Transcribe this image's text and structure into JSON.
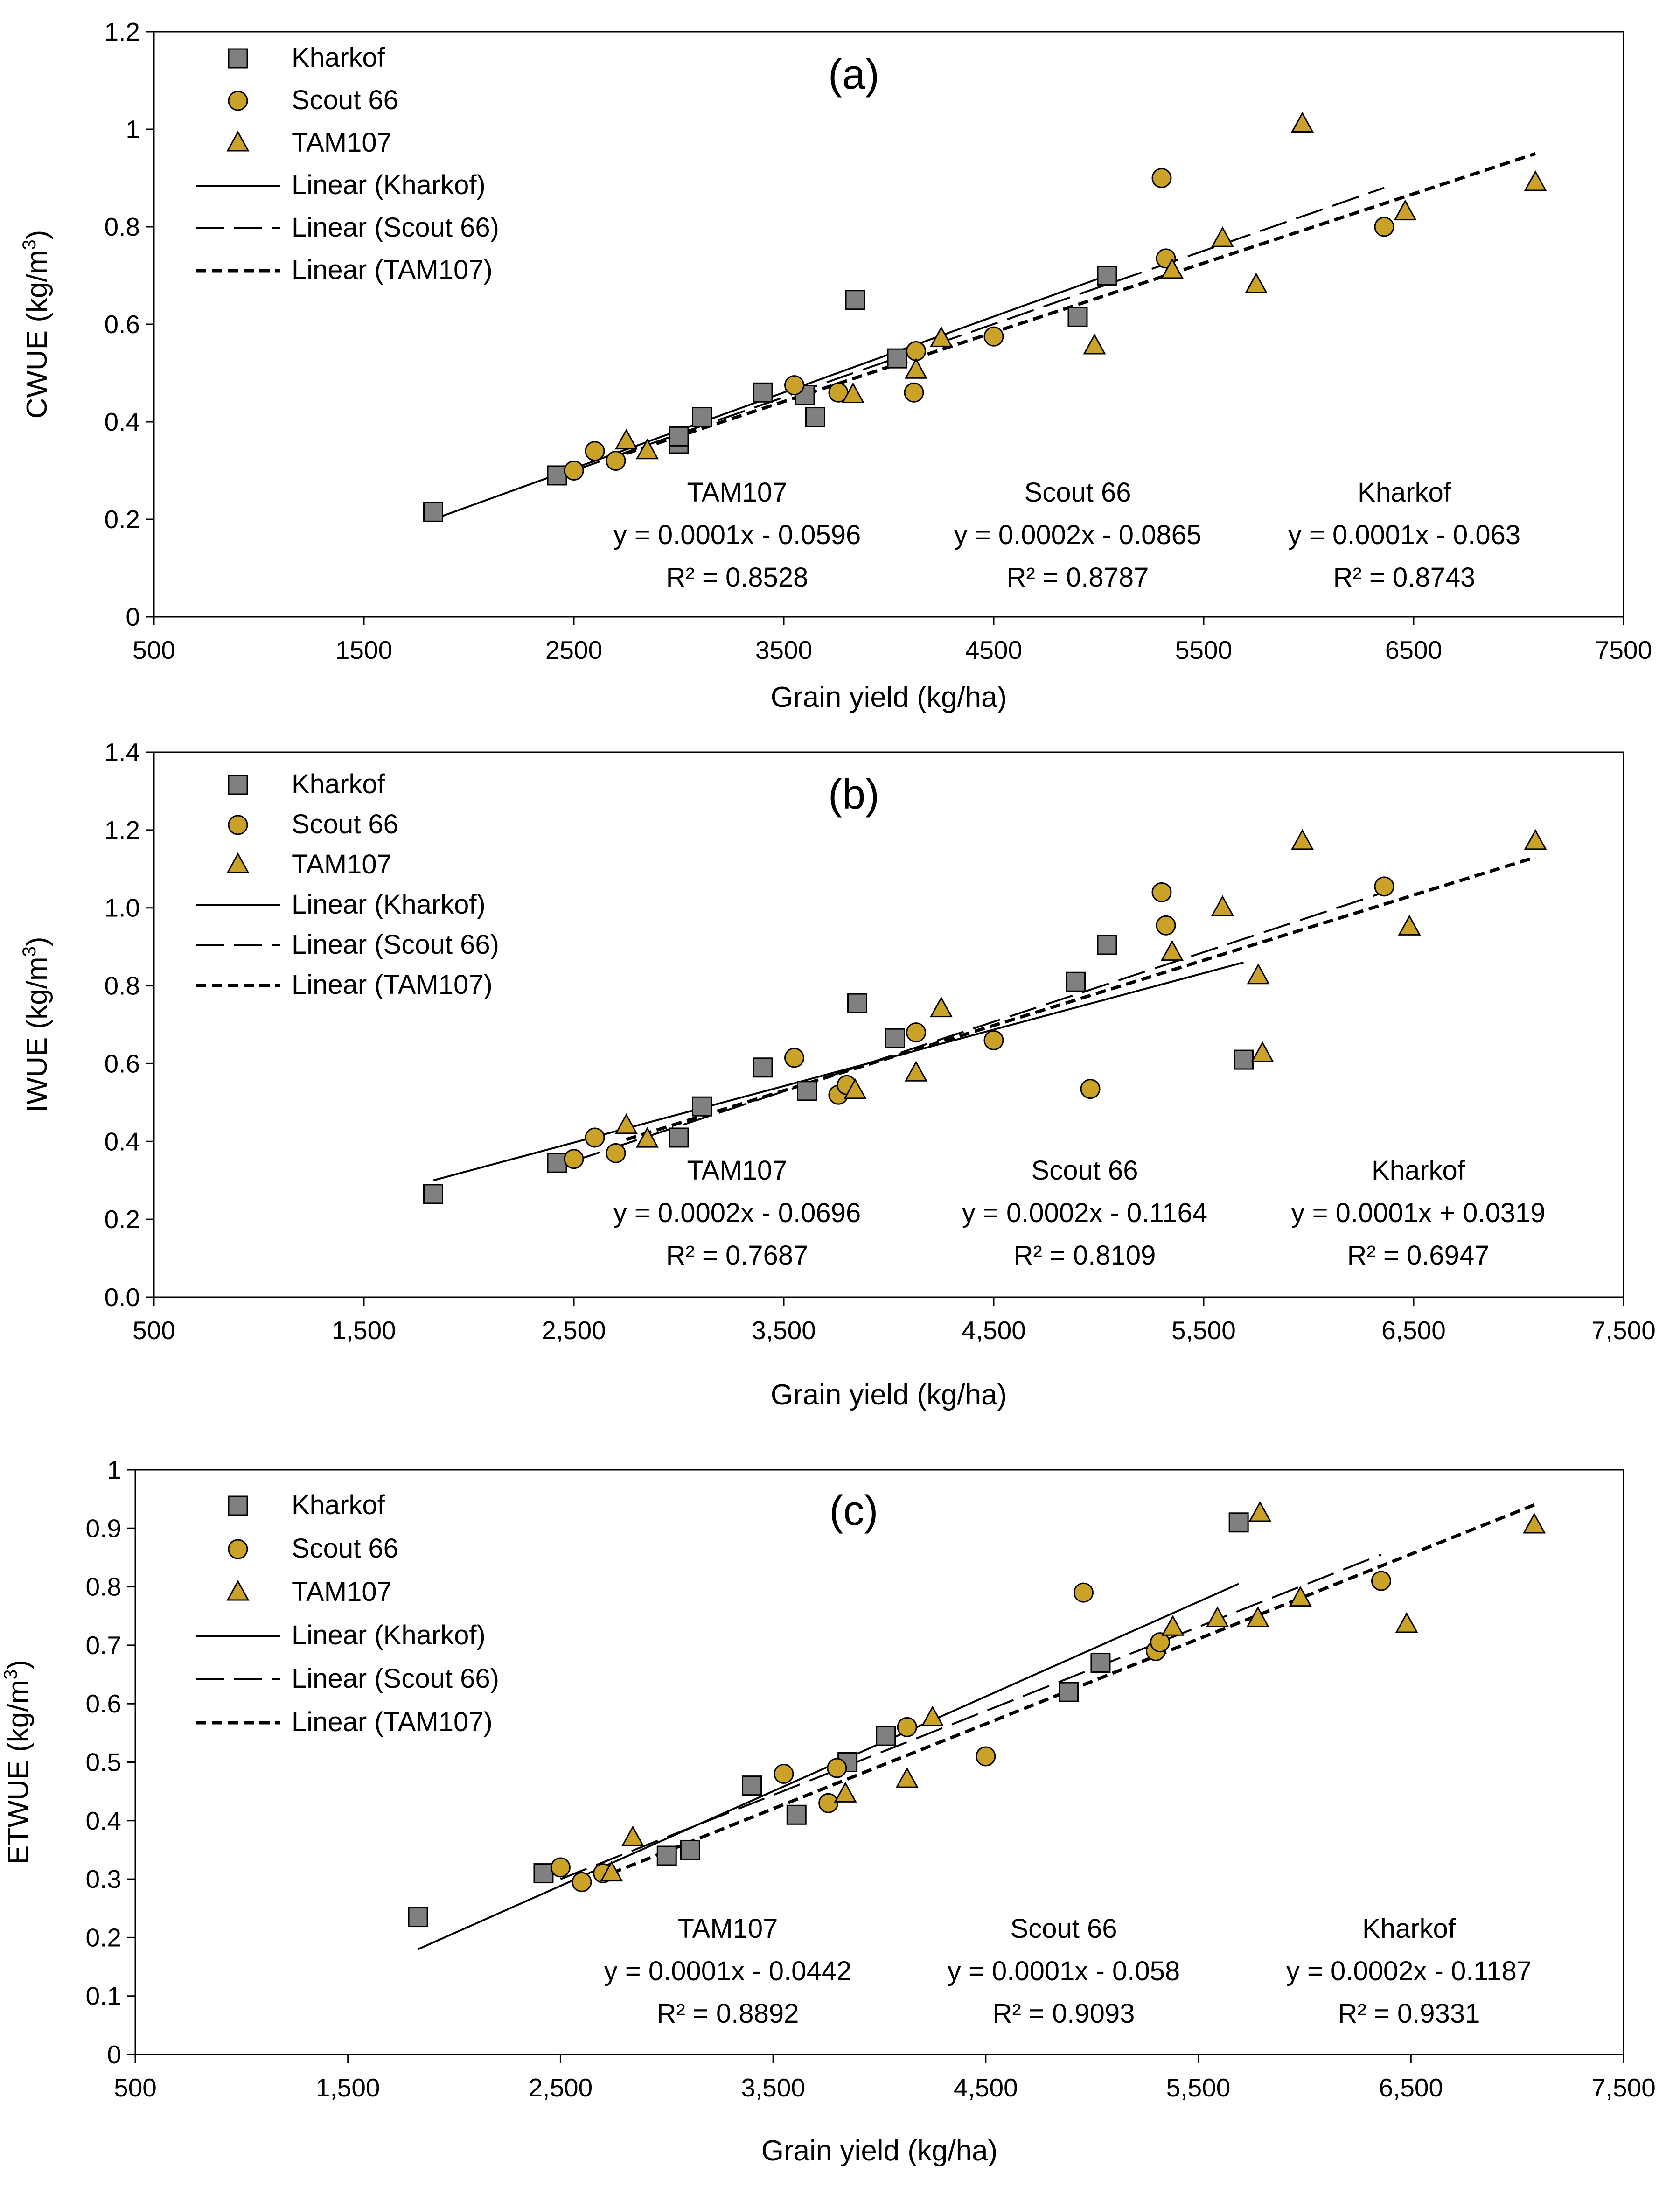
{
  "colors": {
    "kharkof": "#808080",
    "scout": "#C9A227",
    "tam": "#C9A227",
    "edge": "#000000"
  },
  "chart_data": [
    {
      "type": "scatter",
      "panel": "(a)",
      "xlabel": "Grain yield (kg/ha)",
      "ylabel": "CWUE (kg/m",
      "ylabel_sup": "3",
      "ylabel_end": ")",
      "xlim": [
        500,
        7500
      ],
      "ylim": [
        0,
        1.2
      ],
      "xticks": [
        500,
        1500,
        2500,
        3500,
        4500,
        5500,
        6500,
        7500
      ],
      "xtick_labels": [
        "500",
        "1500",
        "2500",
        "3500",
        "4500",
        "5500",
        "6500",
        "7500"
      ],
      "yticks": [
        0,
        0.2,
        0.4,
        0.6,
        0.8,
        1,
        1.2
      ],
      "ytick_labels": [
        "0",
        "0.2",
        "0.4",
        "0.6",
        "0.8",
        "1",
        "1.2"
      ],
      "grid": false,
      "legend": [
        "Kharkof",
        "Scout 66",
        "TAM107",
        "Linear (Kharkof)",
        "Linear (Scout 66)",
        "Linear (TAM107)"
      ],
      "series": [
        {
          "name": "Kharkof",
          "marker": "square",
          "x": [
            1830,
            2420,
            3000,
            3000,
            3110,
            3400,
            3600,
            3650,
            3840,
            4040,
            4900,
            5040
          ],
          "y": [
            0.215,
            0.29,
            0.355,
            0.37,
            0.41,
            0.46,
            0.455,
            0.41,
            0.65,
            0.53,
            0.615,
            0.7
          ]
        },
        {
          "name": "Scout 66",
          "marker": "circle",
          "x": [
            2500,
            2600,
            2700,
            3550,
            3760,
            4120,
            4130,
            4500,
            5300,
            5320,
            6360
          ],
          "y": [
            0.3,
            0.34,
            0.32,
            0.475,
            0.46,
            0.46,
            0.545,
            0.575,
            0.9,
            0.735,
            0.8
          ]
        },
        {
          "name": "TAM107",
          "marker": "triangle",
          "x": [
            2750,
            2850,
            3830,
            4130,
            4250,
            4980,
            5350,
            5590,
            5750,
            5970,
            6460,
            7080
          ],
          "y": [
            0.36,
            0.34,
            0.455,
            0.505,
            0.57,
            0.555,
            0.71,
            0.775,
            0.68,
            1.01,
            0.83,
            0.89
          ]
        }
      ],
      "trendlines": [
        {
          "name": "Linear (Kharkof)",
          "style": "solid",
          "x": [
            1830,
            5040
          ],
          "y": [
            0.2,
            0.7
          ]
        },
        {
          "name": "Linear (Scout 66)",
          "style": "long-dash",
          "x": [
            2500,
            6360
          ],
          "y": [
            0.3,
            0.88
          ]
        },
        {
          "name": "Linear (TAM107)",
          "style": "short-dash",
          "x": [
            2750,
            7080
          ],
          "y": [
            0.335,
            0.95
          ]
        }
      ],
      "annotations": [
        {
          "lines": [
            "TAM107",
            "y = 0.0001x - 0.0596",
            "R² = 0.8528"
          ]
        },
        {
          "lines": [
            "Scout 66",
            "y = 0.0002x - 0.0865",
            "R² = 0.8787"
          ]
        },
        {
          "lines": [
            "Kharkof",
            "y = 0.0001x - 0.063",
            "R² = 0.8743"
          ]
        }
      ]
    },
    {
      "type": "scatter",
      "panel": "(b)",
      "xlabel": "Grain yield (kg/ha)",
      "ylabel": "IWUE (kg/m",
      "ylabel_sup": "3",
      "ylabel_end": ")",
      "xlim": [
        500,
        7500
      ],
      "ylim": [
        0,
        1.4
      ],
      "xticks": [
        500,
        1500,
        2500,
        3500,
        4500,
        5500,
        6500,
        7500
      ],
      "xtick_labels": [
        "500",
        "1,500",
        "2,500",
        "3,500",
        "4,500",
        "5,500",
        "6,500",
        "7,500"
      ],
      "yticks": [
        0,
        0.2,
        0.4,
        0.6,
        0.8,
        1.0,
        1.2,
        1.4
      ],
      "ytick_labels": [
        "0.0",
        "0.2",
        "0.4",
        "0.6",
        "0.8",
        "1.0",
        "1.2",
        "1.4"
      ],
      "grid": false,
      "legend": [
        "Kharkof",
        "Scout 66",
        "TAM107",
        "Linear (Kharkof)",
        "Linear (Scout 66)",
        "Linear (TAM107)"
      ],
      "series": [
        {
          "name": "Kharkof",
          "marker": "square",
          "x": [
            1830,
            2420,
            3000,
            3110,
            3400,
            3610,
            3850,
            4030,
            4890,
            5040,
            5690
          ],
          "y": [
            0.265,
            0.345,
            0.41,
            0.49,
            0.59,
            0.53,
            0.755,
            0.665,
            0.81,
            0.905,
            0.61
          ]
        },
        {
          "name": "Scout 66",
          "marker": "circle",
          "x": [
            2500,
            2600,
            2700,
            3550,
            3760,
            3800,
            4130,
            4500,
            4960,
            5300,
            5320,
            6360
          ],
          "y": [
            0.355,
            0.41,
            0.37,
            0.615,
            0.52,
            0.545,
            0.68,
            0.66,
            0.535,
            1.04,
            0.955,
            1.055
          ]
        },
        {
          "name": "TAM107",
          "marker": "triangle",
          "x": [
            2750,
            2850,
            3840,
            4130,
            4250,
            5350,
            5590,
            5760,
            5780,
            5970,
            6480,
            7080
          ],
          "y": [
            0.44,
            0.405,
            0.53,
            0.575,
            0.74,
            0.885,
            1.0,
            0.825,
            0.625,
            1.17,
            0.95,
            1.17
          ]
        }
      ],
      "trendlines": [
        {
          "name": "Linear (Kharkof)",
          "style": "solid",
          "x": [
            1830,
            5690
          ],
          "y": [
            0.3,
            0.86
          ]
        },
        {
          "name": "Linear (Scout 66)",
          "style": "long-dash",
          "x": [
            2500,
            6360
          ],
          "y": [
            0.35,
            1.04
          ]
        },
        {
          "name": "Linear (TAM107)",
          "style": "short-dash",
          "x": [
            2750,
            7080
          ],
          "y": [
            0.405,
            1.13
          ]
        }
      ],
      "annotations": [
        {
          "lines": [
            "TAM107",
            "y = 0.0002x - 0.0696",
            "R² = 0.7687"
          ]
        },
        {
          "lines": [
            "Scout 66",
            "y = 0.0002x - 0.1164",
            "R² = 0.8109"
          ]
        },
        {
          "lines": [
            "Kharkof",
            "y = 0.0001x + 0.0319",
            "R² = 0.6947"
          ]
        }
      ]
    },
    {
      "type": "scatter",
      "panel": "(c)",
      "xlabel": "Grain yield (kg/ha)",
      "ylabel": "ETWUE (kg/m",
      "ylabel_sup": "3",
      "ylabel_end": ")",
      "xlim": [
        500,
        7500
      ],
      "ylim": [
        0,
        1
      ],
      "xticks": [
        500,
        1500,
        2500,
        3500,
        4500,
        5500,
        6500,
        7500
      ],
      "xtick_labels": [
        "500",
        "1,500",
        "2,500",
        "3,500",
        "4,500",
        "5,500",
        "6,500",
        "7,500"
      ],
      "yticks": [
        0,
        0.1,
        0.2,
        0.3,
        0.4,
        0.5,
        0.6,
        0.7,
        0.8,
        0.9,
        1
      ],
      "ytick_labels": [
        "0",
        "0.1",
        "0.2",
        "0.3",
        "0.4",
        "0.5",
        "0.6",
        "0.7",
        "0.8",
        "0.9",
        "1"
      ],
      "grid": false,
      "legend": [
        "Kharkof",
        "Scout 66",
        "TAM107",
        "Linear (Kharkof)",
        "Linear (Scout 66)",
        "Linear (TAM107)"
      ],
      "series": [
        {
          "name": "Kharkof",
          "marker": "square",
          "x": [
            1830,
            2420,
            3000,
            3110,
            3400,
            3610,
            3850,
            4030,
            4890,
            5040,
            5690
          ],
          "y": [
            0.235,
            0.31,
            0.34,
            0.35,
            0.46,
            0.41,
            0.5,
            0.545,
            0.62,
            0.67,
            0.91
          ]
        },
        {
          "name": "Scout 66",
          "marker": "circle",
          "x": [
            2500,
            2600,
            2700,
            3550,
            3760,
            3800,
            4130,
            4500,
            4960,
            5300,
            5320,
            6360
          ],
          "y": [
            0.32,
            0.295,
            0.31,
            0.48,
            0.43,
            0.49,
            0.56,
            0.51,
            0.79,
            0.69,
            0.705,
            0.81
          ]
        },
        {
          "name": "TAM107",
          "marker": "triangle",
          "x": [
            2740,
            2840,
            3840,
            4130,
            4250,
            5380,
            5590,
            5780,
            5790,
            5980,
            6480,
            7080
          ],
          "y": [
            0.31,
            0.37,
            0.445,
            0.47,
            0.575,
            0.73,
            0.745,
            0.745,
            0.925,
            0.78,
            0.735,
            0.905
          ]
        }
      ],
      "trendlines": [
        {
          "name": "Linear (Kharkof)",
          "style": "solid",
          "x": [
            1830,
            5690
          ],
          "y": [
            0.18,
            0.805
          ]
        },
        {
          "name": "Linear (Scout 66)",
          "style": "long-dash",
          "x": [
            2500,
            6360
          ],
          "y": [
            0.3,
            0.855
          ]
        },
        {
          "name": "Linear (TAM107)",
          "style": "short-dash",
          "x": [
            2740,
            7080
          ],
          "y": [
            0.31,
            0.94
          ]
        }
      ],
      "annotations": [
        {
          "lines": [
            "TAM107",
            "y = 0.0001x - 0.0442",
            "R² = 0.8892"
          ]
        },
        {
          "lines": [
            "Scout 66",
            "y = 0.0001x - 0.058",
            "R² = 0.9093"
          ]
        },
        {
          "lines": [
            "Kharkof",
            "y = 0.0002x - 0.1187",
            "R² = 0.9331"
          ]
        }
      ]
    }
  ]
}
